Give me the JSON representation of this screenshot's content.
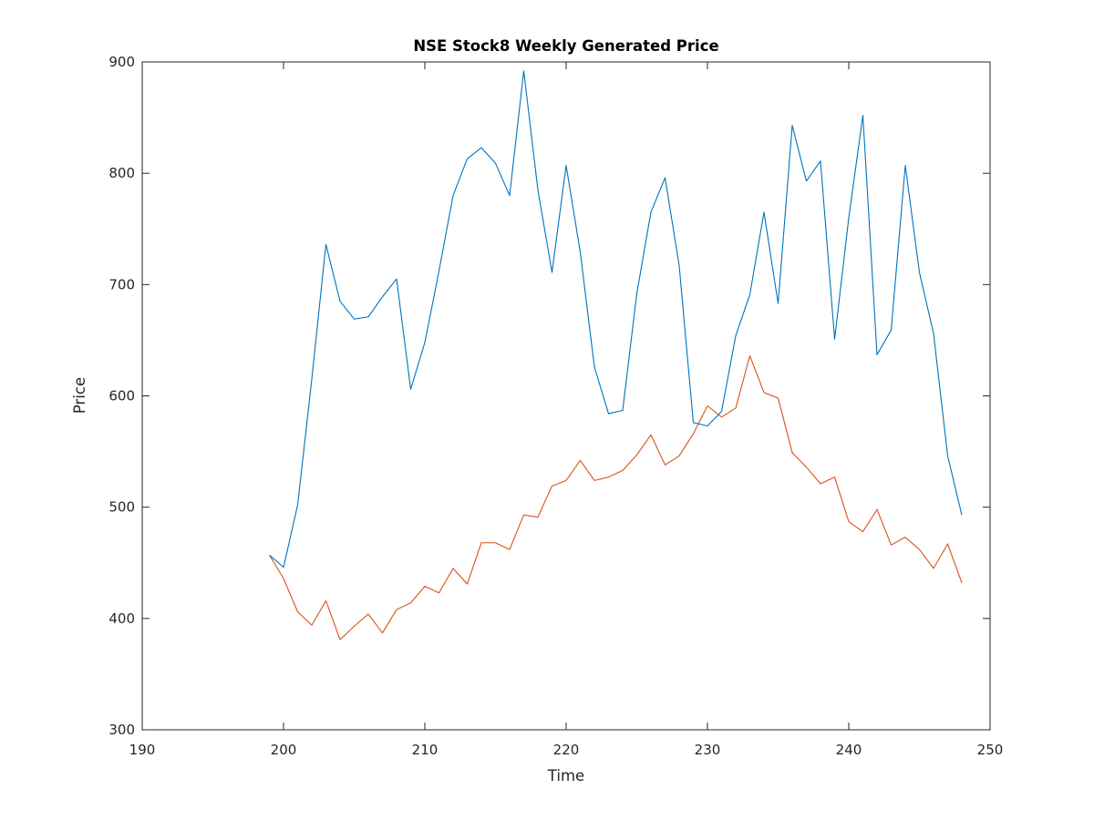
{
  "chart_data": {
    "type": "line",
    "title": "NSE Stock8 Weekly Generated Price",
    "xlabel": "Time",
    "ylabel": "Price",
    "xlim": [
      190,
      250
    ],
    "ylim": [
      300,
      900
    ],
    "xticks": [
      190,
      200,
      210,
      220,
      230,
      240,
      250
    ],
    "yticks": [
      300,
      400,
      500,
      600,
      700,
      800,
      900
    ],
    "grid": false,
    "legend": "none",
    "x": [
      199,
      200,
      201,
      202,
      203,
      204,
      205,
      206,
      207,
      208,
      209,
      210,
      211,
      212,
      213,
      214,
      215,
      216,
      217,
      218,
      219,
      220,
      221,
      222,
      223,
      224,
      225,
      226,
      227,
      228,
      229,
      230,
      231,
      232,
      233,
      234,
      235,
      236,
      237,
      238,
      239,
      240,
      241,
      242,
      243,
      244,
      245,
      246,
      247,
      248
    ],
    "series": [
      {
        "color": "#0072BD",
        "values": [
          457,
          446,
          502,
          615,
          736,
          685,
          669,
          671,
          689,
          705,
          606,
          648,
          712,
          780,
          813,
          823,
          809,
          780,
          892,
          785,
          711,
          807,
          729,
          626,
          584,
          587,
          692,
          765,
          796,
          717,
          576,
          573,
          586,
          654,
          691,
          765,
          683,
          843,
          793,
          811,
          651,
          760,
          852,
          637,
          659,
          807,
          711,
          656,
          546,
          493
        ]
      },
      {
        "color": "#D95319",
        "values": [
          457,
          436,
          406,
          394,
          416,
          381,
          393,
          404,
          387,
          408,
          414,
          429,
          423,
          445,
          431,
          468,
          468,
          462,
          493,
          491,
          519,
          524,
          542,
          524,
          527,
          533,
          547,
          565,
          538,
          546,
          566,
          591,
          581,
          589,
          636,
          603,
          598,
          549,
          536,
          521,
          527,
          487,
          478,
          498,
          466,
          473,
          462,
          445,
          467,
          432
        ]
      }
    ]
  }
}
